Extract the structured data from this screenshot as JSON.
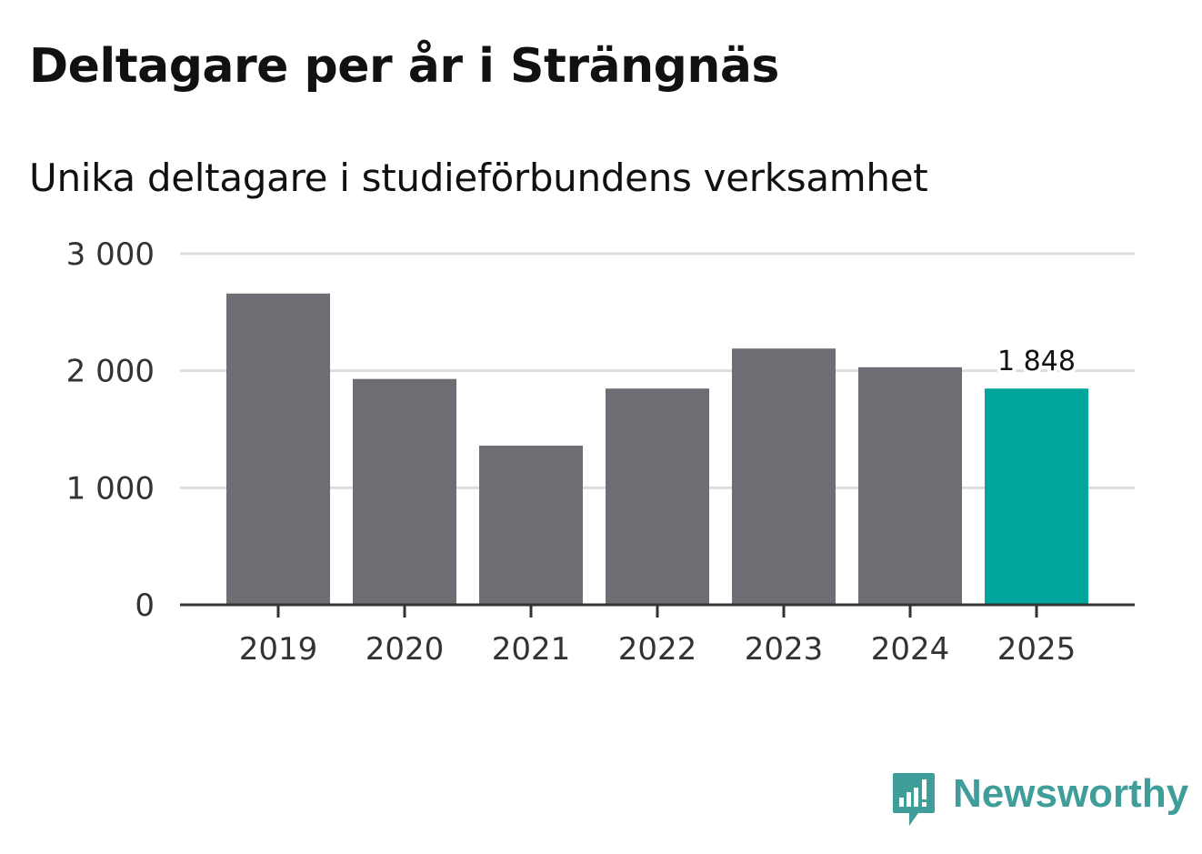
{
  "title": "Deltagare per år i Strängnäs",
  "subtitle": "Unika deltagare i studieförbundens verksamhet",
  "brand": {
    "name": "Newsworthy",
    "color": "#3f9e9a",
    "icon": "newsworthy-logo-icon"
  },
  "colors": {
    "bar": "#6e6d73",
    "highlight": "#00a59b",
    "gridline": "#dddddd",
    "axis": "#333333"
  },
  "chart_data": {
    "type": "bar",
    "title": "Deltagare per år i Strängnäs",
    "subtitle": "Unika deltagare i studieförbundens verksamhet",
    "xlabel": "",
    "ylabel": "",
    "categories": [
      "2019",
      "2020",
      "2021",
      "2022",
      "2023",
      "2024",
      "2025"
    ],
    "values": [
      2660,
      1930,
      1360,
      1848,
      2190,
      2030,
      1848
    ],
    "highlight_index": 6,
    "data_labels": [
      {
        "index": 6,
        "text": "1 848"
      }
    ],
    "ylim": [
      0,
      3000
    ],
    "yticks": [
      0,
      1000,
      2000,
      3000
    ],
    "ytick_labels": [
      "0",
      "1 000",
      "2 000",
      "3 000"
    ],
    "grid": true,
    "legend": "none"
  }
}
